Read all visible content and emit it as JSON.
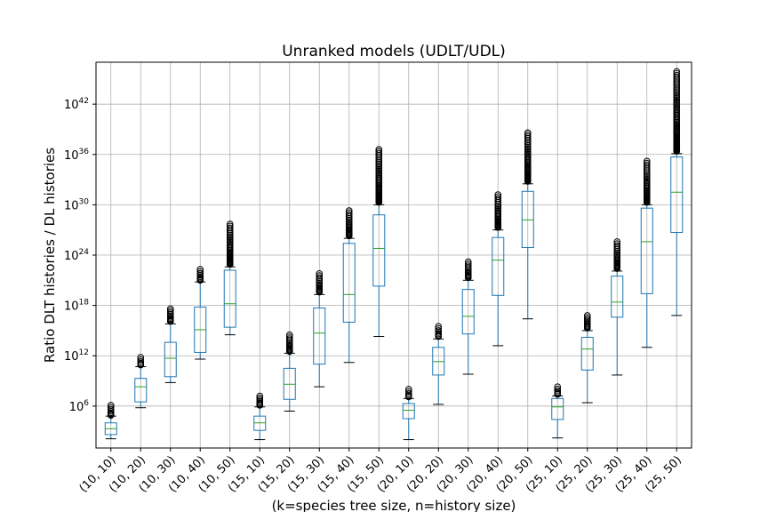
{
  "chart_data": {
    "type": "boxplot",
    "title": "Unranked models (UDLT/UDL)",
    "xlabel": "(k=species tree size, n=history size)",
    "ylabel": "Ratio DLT histories / DL histories",
    "yscale": "log10",
    "ylim_exponent": [
      1,
      47
    ],
    "yticks_exponent": [
      6,
      12,
      18,
      24,
      30,
      36,
      42
    ],
    "ytick_base": "10",
    "grid": true,
    "categories": [
      "(10, 10)",
      "(10, 20)",
      "(10, 30)",
      "(10, 40)",
      "(10, 50)",
      "(15, 10)",
      "(15, 20)",
      "(15, 30)",
      "(15, 40)",
      "(15, 50)",
      "(20, 10)",
      "(20, 20)",
      "(20, 30)",
      "(20, 40)",
      "(20, 50)",
      "(25, 10)",
      "(25, 20)",
      "(25, 30)",
      "(25, 40)",
      "(25, 50)"
    ],
    "boxes_log10": [
      {
        "wlow": 2.1,
        "q1": 2.6,
        "median": 3.3,
        "q3": 4.0,
        "whigh": 4.8,
        "outliers_low": 4.9,
        "outliers_high": 6.1
      },
      {
        "wlow": 5.8,
        "q1": 6.5,
        "median": 8.3,
        "q3": 9.3,
        "whigh": 10.7,
        "outliers_low": 10.9,
        "outliers_high": 11.8
      },
      {
        "wlow": 8.8,
        "q1": 9.5,
        "median": 11.7,
        "q3": 13.6,
        "whigh": 15.8,
        "outliers_low": 16.1,
        "outliers_high": 17.6
      },
      {
        "wlow": 11.6,
        "q1": 12.4,
        "median": 15.1,
        "q3": 17.8,
        "whigh": 20.8,
        "outliers_low": 21.0,
        "outliers_high": 22.3
      },
      {
        "wlow": 14.5,
        "q1": 15.4,
        "median": 18.2,
        "q3": 22.2,
        "whigh": 22.6,
        "outliers_low": 22.9,
        "outliers_high": 27.7
      },
      {
        "wlow": 2.0,
        "q1": 3.1,
        "median": 4.0,
        "q3": 4.8,
        "whigh": 5.9,
        "outliers_low": 6.1,
        "outliers_high": 7.2
      },
      {
        "wlow": 5.4,
        "q1": 6.8,
        "median": 8.6,
        "q3": 10.5,
        "whigh": 12.3,
        "outliers_low": 12.5,
        "outliers_high": 14.5
      },
      {
        "wlow": 8.3,
        "q1": 11.0,
        "median": 14.7,
        "q3": 17.7,
        "whigh": 19.3,
        "outliers_low": 19.6,
        "outliers_high": 21.8
      },
      {
        "wlow": 11.2,
        "q1": 16.0,
        "median": 19.3,
        "q3": 25.4,
        "whigh": 26.0,
        "outliers_low": 26.3,
        "outliers_high": 29.3
      },
      {
        "wlow": 14.3,
        "q1": 20.3,
        "median": 24.8,
        "q3": 28.8,
        "whigh": 30.0,
        "outliers_low": 30.3,
        "outliers_high": 36.6
      },
      {
        "wlow": 2.0,
        "q1": 4.5,
        "median": 5.5,
        "q3": 6.3,
        "whigh": 6.9,
        "outliers_low": 7.1,
        "outliers_high": 8.0
      },
      {
        "wlow": 6.2,
        "q1": 9.7,
        "median": 11.3,
        "q3": 13.0,
        "whigh": 14.0,
        "outliers_low": 14.3,
        "outliers_high": 15.5
      },
      {
        "wlow": 9.8,
        "q1": 14.6,
        "median": 16.7,
        "q3": 19.9,
        "whigh": 21.0,
        "outliers_low": 21.3,
        "outliers_high": 23.2
      },
      {
        "wlow": 13.2,
        "q1": 19.2,
        "median": 23.4,
        "q3": 26.1,
        "whigh": 27.0,
        "outliers_low": 27.3,
        "outliers_high": 31.2
      },
      {
        "wlow": 16.4,
        "q1": 24.9,
        "median": 28.2,
        "q3": 31.6,
        "whigh": 32.5,
        "outliers_low": 32.8,
        "outliers_high": 38.6
      },
      {
        "wlow": 2.2,
        "q1": 4.4,
        "median": 5.9,
        "q3": 6.9,
        "whigh": 7.2,
        "outliers_low": 7.4,
        "outliers_high": 8.3
      },
      {
        "wlow": 6.4,
        "q1": 10.3,
        "median": 12.8,
        "q3": 14.2,
        "whigh": 15.0,
        "outliers_low": 15.3,
        "outliers_high": 16.8
      },
      {
        "wlow": 9.7,
        "q1": 16.6,
        "median": 18.4,
        "q3": 21.5,
        "whigh": 22.1,
        "outliers_low": 22.4,
        "outliers_high": 25.6
      },
      {
        "wlow": 13.0,
        "q1": 19.4,
        "median": 25.6,
        "q3": 29.6,
        "whigh": 30.0,
        "outliers_low": 30.3,
        "outliers_high": 35.2
      },
      {
        "wlow": 16.8,
        "q1": 26.7,
        "median": 31.5,
        "q3": 35.7,
        "whigh": 36.1,
        "outliers_low": 36.4,
        "outliers_high": 45.9
      }
    ],
    "colors": {
      "box": "#1f77b4",
      "median": "#2ca02c",
      "cap": "#000000",
      "flier": "#000000",
      "grid": "#b0b0b0"
    }
  }
}
